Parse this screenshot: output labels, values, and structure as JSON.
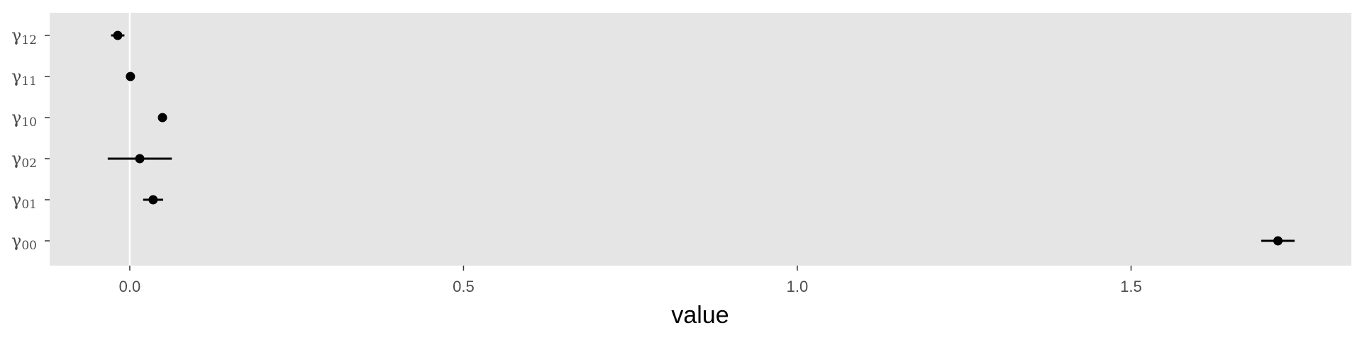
{
  "chart_data": {
    "type": "scatter",
    "title": "",
    "xlabel": "value",
    "ylabel": "",
    "xlim": [
      -0.12,
      1.83
    ],
    "grid": true,
    "x_ticks": [
      0.0,
      0.5,
      1.0,
      1.5
    ],
    "x_tick_labels": [
      "0.0",
      "0.5",
      "1.0",
      "1.5"
    ],
    "reference_line_x": 0.0,
    "categories": [
      {
        "symbol": "γ",
        "sub": "00"
      },
      {
        "symbol": "γ",
        "sub": "01"
      },
      {
        "symbol": "γ",
        "sub": "02"
      },
      {
        "symbol": "γ",
        "sub": "10"
      },
      {
        "symbol": "γ",
        "sub": "11"
      },
      {
        "symbol": "γ",
        "sub": "12"
      }
    ],
    "points": [
      {
        "value": 1.72,
        "lower": 1.695,
        "upper": 1.745
      },
      {
        "value": 0.035,
        "lower": 0.02,
        "upper": 0.05
      },
      {
        "value": 0.015,
        "lower": -0.033,
        "upper": 0.063
      },
      {
        "value": 0.049,
        "lower": 0.049,
        "upper": 0.049
      },
      {
        "value": 0.001,
        "lower": 0.001,
        "upper": 0.001
      },
      {
        "value": -0.018,
        "lower": -0.028,
        "upper": -0.008
      }
    ],
    "colors": {
      "panel_background": "#e5e5e5",
      "gridline": "#ffffff",
      "point": "#000000"
    }
  }
}
